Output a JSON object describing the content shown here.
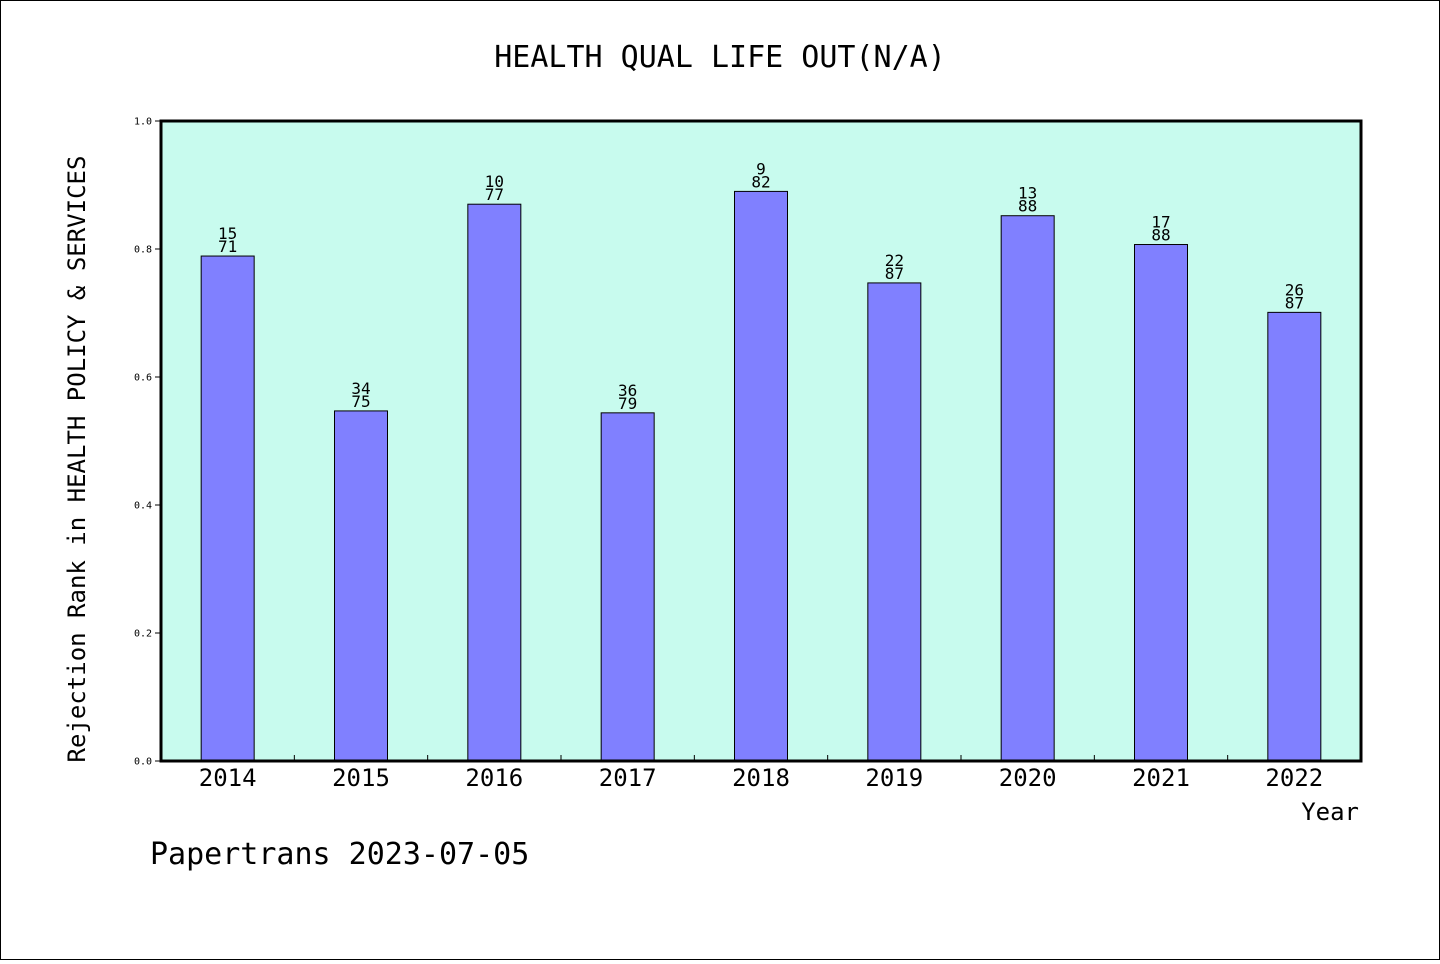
{
  "chart_data": {
    "type": "bar",
    "title": "HEALTH QUAL LIFE OUT(N/A)",
    "xlabel": "Year",
    "ylabel": "Rejection Rank in HEALTH POLICY & SERVICES",
    "ylim": [
      0,
      1.0
    ],
    "yticks": [
      "0.0",
      "0.2",
      "0.4",
      "0.6",
      "0.8",
      "1.0"
    ],
    "categories": [
      "2014",
      "2015",
      "2016",
      "2017",
      "2018",
      "2019",
      "2020",
      "2021",
      "2022"
    ],
    "values": [
      0.789,
      0.547,
      0.87,
      0.544,
      0.89,
      0.747,
      0.852,
      0.807,
      0.701
    ],
    "labels_top": [
      "15",
      "34",
      "10",
      "36",
      "9",
      "22",
      "13",
      "17",
      "26"
    ],
    "labels_bottom": [
      "71",
      "75",
      "77",
      "79",
      "82",
      "87",
      "88",
      "88",
      "87"
    ],
    "grid": false,
    "colors": {
      "plot_bg": "#c8fbee",
      "bar": "#8080ff",
      "bar_edge": "#000000"
    }
  },
  "footer": {
    "text": "Papertrans 2023-07-05"
  }
}
